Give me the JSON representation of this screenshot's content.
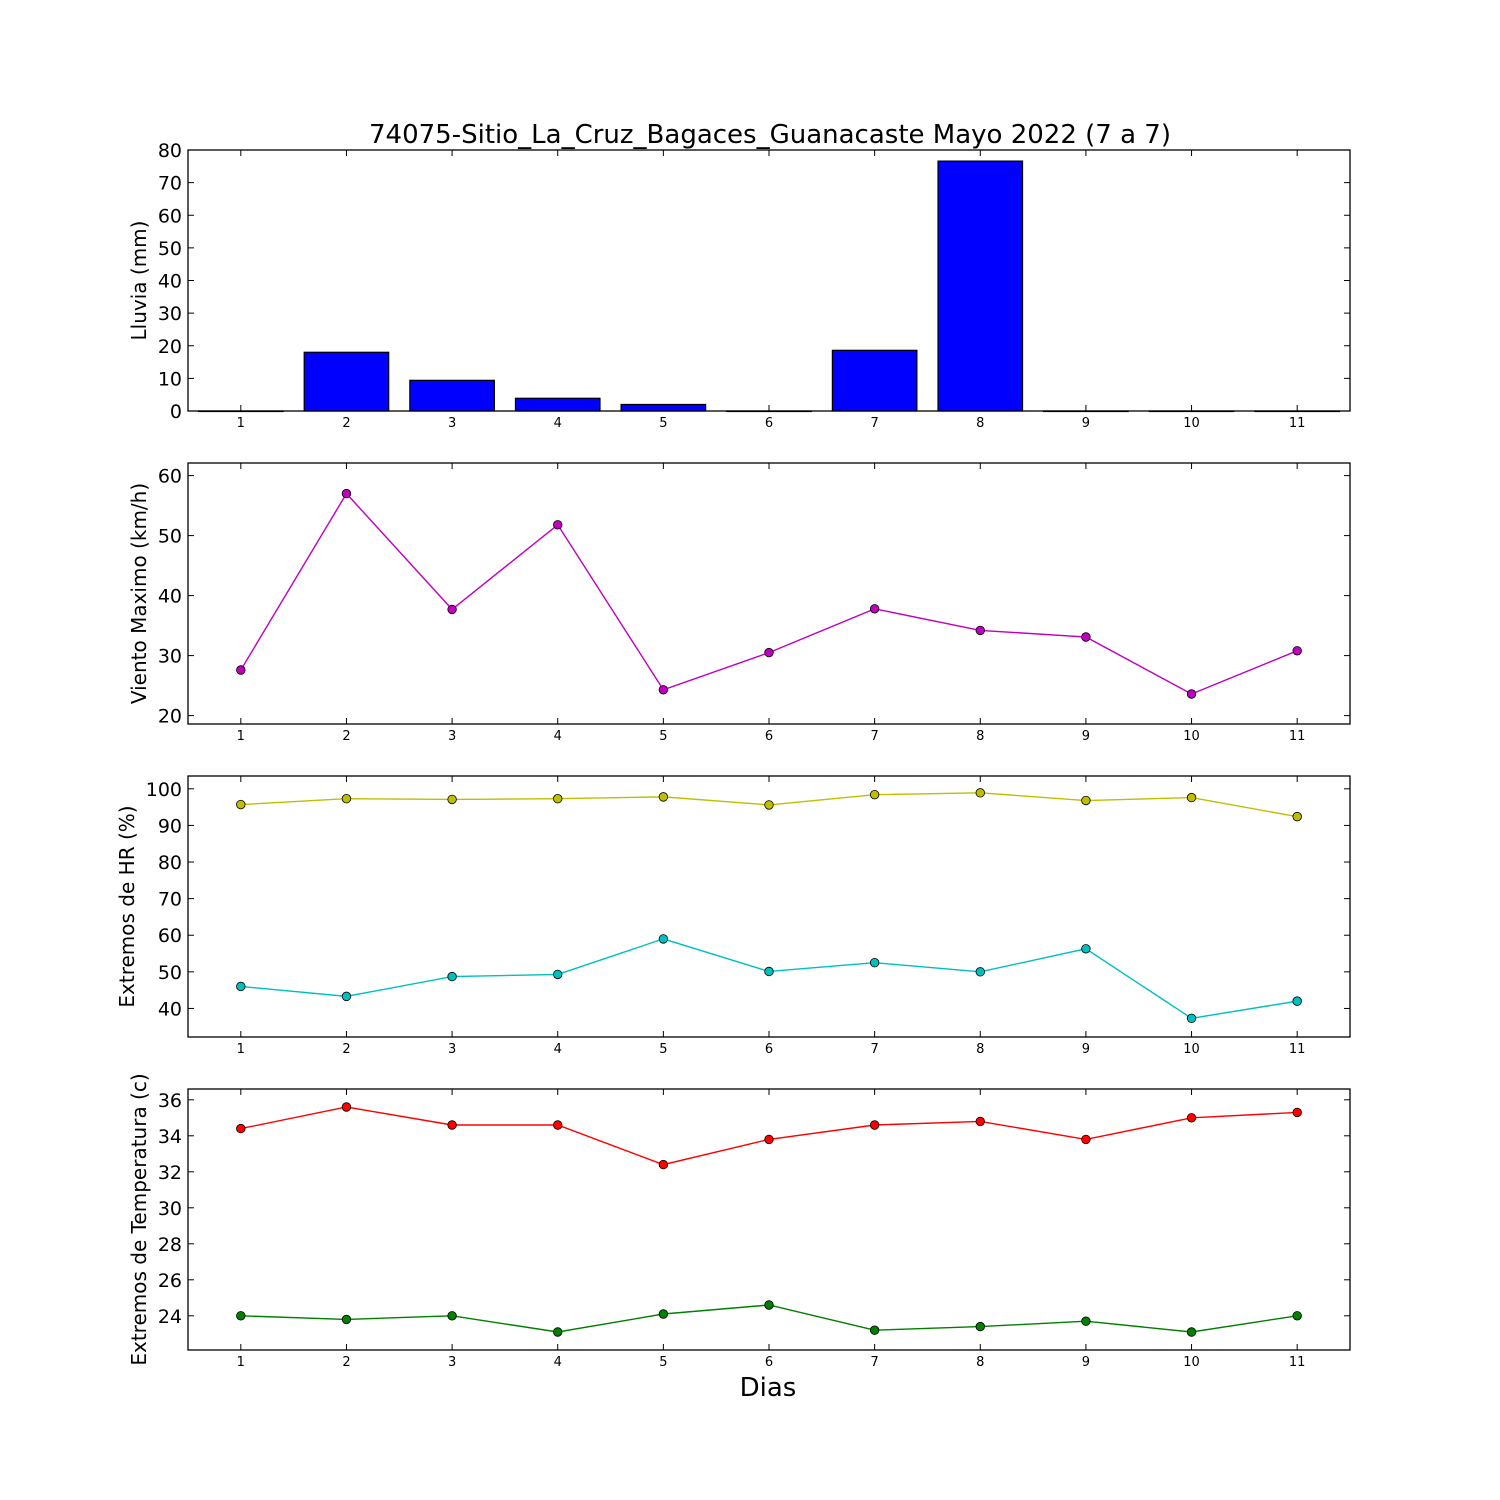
{
  "figure_title": "74075-Sitio_La_Cruz_Bagaces_Guanacaste Mayo 2022  (7 a 7)",
  "xlabel": "Dias",
  "chart_data": [
    {
      "type": "bar",
      "ylabel": "Lluvia (mm)",
      "x": [
        1,
        2,
        3,
        4,
        5,
        6,
        7,
        8,
        9,
        10,
        11
      ],
      "ylim": [
        0,
        80
      ],
      "yticks": [
        0,
        10,
        20,
        30,
        40,
        50,
        60,
        70,
        80
      ],
      "series": [
        {
          "values": [
            0,
            18.0,
            9.4,
            3.9,
            2.0,
            0,
            18.6,
            76.6,
            0,
            0,
            0
          ],
          "color": "#0000ff"
        }
      ]
    },
    {
      "type": "line",
      "ylabel": "Viento Maximo (km/h)",
      "x": [
        1,
        2,
        3,
        4,
        5,
        6,
        7,
        8,
        9,
        10,
        11
      ],
      "ylim": [
        18.6,
        62.1
      ],
      "yticks": [
        20,
        30,
        40,
        50,
        60
      ],
      "series": [
        {
          "values": [
            27.6,
            57.0,
            37.7,
            51.8,
            24.3,
            30.5,
            37.8,
            34.2,
            33.1,
            23.6,
            30.8
          ],
          "color": "#bf00bf"
        }
      ]
    },
    {
      "type": "line",
      "ylabel": "Extremos de HR (%)",
      "x": [
        1,
        2,
        3,
        4,
        5,
        6,
        7,
        8,
        9,
        10,
        11
      ],
      "ylim": [
        32.2,
        103.5
      ],
      "yticks": [
        40,
        50,
        60,
        70,
        80,
        90,
        100
      ],
      "series": [
        {
          "values": [
            95.7,
            97.3,
            97.1,
            97.3,
            97.8,
            95.6,
            98.4,
            98.9,
            96.8,
            97.6,
            92.4
          ],
          "color": "#bfbf00"
        },
        {
          "values": [
            46.0,
            43.3,
            48.7,
            49.3,
            59.0,
            50.1,
            52.5,
            50.0,
            56.3,
            37.3,
            42.0
          ],
          "color": "#00bfbf"
        }
      ]
    },
    {
      "type": "line",
      "ylabel": "Extremos de Temperatura (c)",
      "x": [
        1,
        2,
        3,
        4,
        5,
        6,
        7,
        8,
        9,
        10,
        11
      ],
      "ylim": [
        22.1,
        36.6
      ],
      "yticks": [
        24,
        26,
        28,
        30,
        32,
        34,
        36
      ],
      "series": [
        {
          "values": [
            34.4,
            35.6,
            34.6,
            34.6,
            32.4,
            33.8,
            34.6,
            34.8,
            33.8,
            35.0,
            35.3
          ],
          "color": "#ff0000"
        },
        {
          "values": [
            24.0,
            23.8,
            24.0,
            23.1,
            24.1,
            24.6,
            23.2,
            23.4,
            23.7,
            23.1,
            24.0
          ],
          "color": "#007f00"
        }
      ]
    }
  ]
}
